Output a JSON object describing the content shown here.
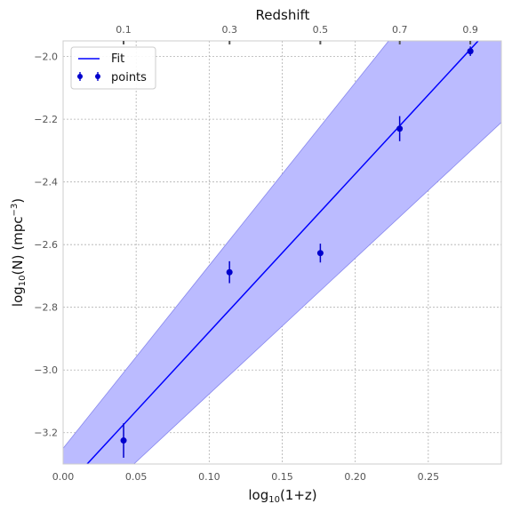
{
  "chart_data": {
    "type": "line",
    "xlabel_main": "log",
    "xlabel_sub": "10",
    "xlabel_rest": "(1+z)",
    "ylabel_main": "log",
    "ylabel_sub": "10",
    "ylabel_mid": "(N) (mpc",
    "ylabel_sup": "−3",
    "ylabel_end": ")",
    "top_label": "Redshift",
    "xlim": [
      0.0,
      0.3
    ],
    "ylim": [
      -3.3,
      -1.95
    ],
    "x_ticks": [
      0.0,
      0.05,
      0.1,
      0.15,
      0.2,
      0.25
    ],
    "x_tick_labels": [
      "0.00",
      "0.05",
      "0.10",
      "0.15",
      "0.20",
      "0.25"
    ],
    "y_ticks": [
      -3.2,
      -3.0,
      -2.8,
      -2.6,
      -2.4,
      -2.2,
      -2.0
    ],
    "y_tick_labels": [
      "−3.2",
      "−3.0",
      "−2.8",
      "−2.6",
      "−2.4",
      "−2.2",
      "−2.0"
    ],
    "top_ticks": [
      0.1,
      0.3,
      0.5,
      0.7,
      0.9
    ],
    "top_tick_labels": [
      "0.1",
      "0.3",
      "0.5",
      "0.7",
      "0.9"
    ],
    "grid": true,
    "legend_placement": "top-left",
    "legend": [
      "Fit",
      "points"
    ],
    "points": {
      "name": "points",
      "x": [
        0.0414,
        0.1139,
        0.1761,
        0.2304,
        0.2788
      ],
      "y": [
        -3.225,
        -2.688,
        -2.627,
        -2.23,
        -1.983
      ],
      "yerr": [
        0.055,
        0.035,
        0.03,
        0.04,
        0.015
      ],
      "color": "#0000cd"
    },
    "fit": {
      "name": "Fit",
      "x": [
        0.0,
        0.3
      ],
      "y": [
        -3.383,
        -1.87
      ],
      "color": "#0000ff"
    },
    "band": {
      "x": [
        0.0,
        0.3
      ],
      "upper": [
        -3.25,
        -1.5
      ],
      "lower": [
        -3.51,
        -2.21
      ],
      "color": "#bbbbff"
    }
  }
}
